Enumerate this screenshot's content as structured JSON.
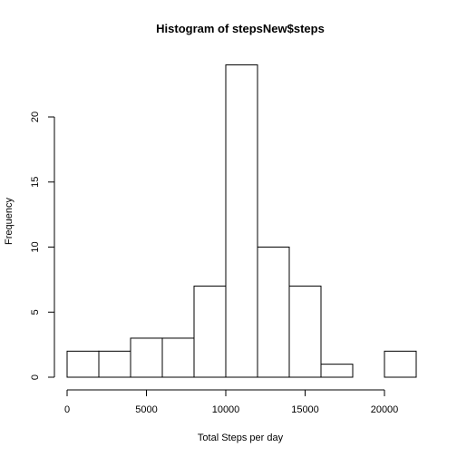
{
  "chart_data": {
    "type": "bar",
    "title": "Histogram of stepsNew$steps",
    "xlabel": "Total Steps per day",
    "ylabel": "Frequency",
    "bin_edges": [
      0,
      2000,
      4000,
      6000,
      8000,
      10000,
      12000,
      14000,
      16000,
      18000,
      20000,
      22000
    ],
    "values": [
      2,
      2,
      3,
      3,
      7,
      24,
      10,
      7,
      1,
      0,
      2
    ],
    "x_ticks": [
      0,
      5000,
      10000,
      15000,
      20000
    ],
    "y_ticks": [
      0,
      5,
      10,
      15,
      20
    ],
    "xlim": [
      0,
      22000
    ],
    "ylim": [
      0,
      24
    ],
    "grid": false,
    "colors": {
      "bar_fill": "#ffffff",
      "bar_stroke": "#000000"
    }
  }
}
